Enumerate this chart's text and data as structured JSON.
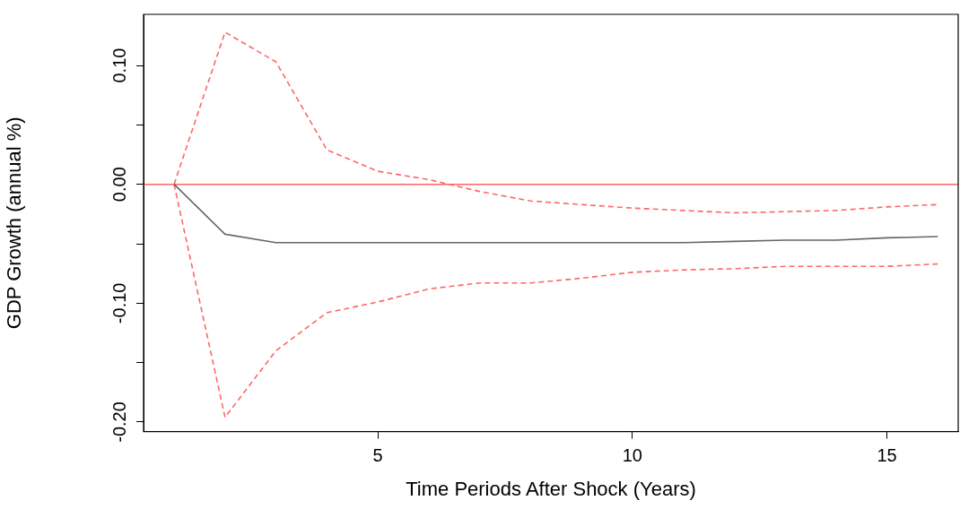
{
  "chart_data": {
    "type": "line",
    "xlabel": "Time Periods After Shock (Years)",
    "ylabel": "GDP Growth (annual %)",
    "x": [
      1,
      2,
      3,
      4,
      5,
      6,
      7,
      8,
      9,
      10,
      11,
      12,
      13,
      14,
      15,
      16
    ],
    "series": [
      {
        "color": "#666666",
        "line_style": "solid",
        "values": [
          0,
          -0.042,
          -0.049,
          -0.049,
          -0.049,
          -0.049,
          -0.049,
          -0.049,
          -0.049,
          -0.049,
          -0.049,
          -0.048,
          -0.047,
          -0.047,
          -0.045,
          -0.044
        ]
      },
      {
        "color": "#ff6666",
        "line_style": "dashed",
        "values": [
          0,
          0.128,
          0.103,
          0.029,
          0.011,
          0.004,
          -0.006,
          -0.014,
          -0.017,
          -0.02,
          -0.022,
          -0.024,
          -0.023,
          -0.022,
          -0.019,
          -0.017
        ]
      },
      {
        "color": "#ff6666",
        "line_style": "dashed",
        "values": [
          0,
          -0.196,
          -0.14,
          -0.108,
          -0.099,
          -0.088,
          -0.083,
          -0.083,
          -0.079,
          -0.074,
          -0.072,
          -0.071,
          -0.069,
          -0.069,
          -0.069,
          -0.067
        ]
      }
    ],
    "ref_lines": [
      {
        "axis": "y",
        "value": 0,
        "color": "#ff6666",
        "line_style": "solid"
      }
    ],
    "xlim": [
      0.4,
      16.4
    ],
    "xticks": [
      5,
      10,
      15
    ],
    "ylim": [
      -0.208,
      0.143
    ],
    "yticks": [
      {
        "value": 0.1,
        "label": "0.10"
      },
      {
        "value": 0.05,
        "label": null
      },
      {
        "value": 0,
        "label": "0.00"
      },
      {
        "value": -0.05,
        "label": null
      },
      {
        "value": -0.1,
        "label": "-0.10"
      },
      {
        "value": -0.15,
        "label": null
      },
      {
        "value": -0.2,
        "label": "-0.20"
      }
    ],
    "marker": "none",
    "grid": false,
    "legend": false
  }
}
